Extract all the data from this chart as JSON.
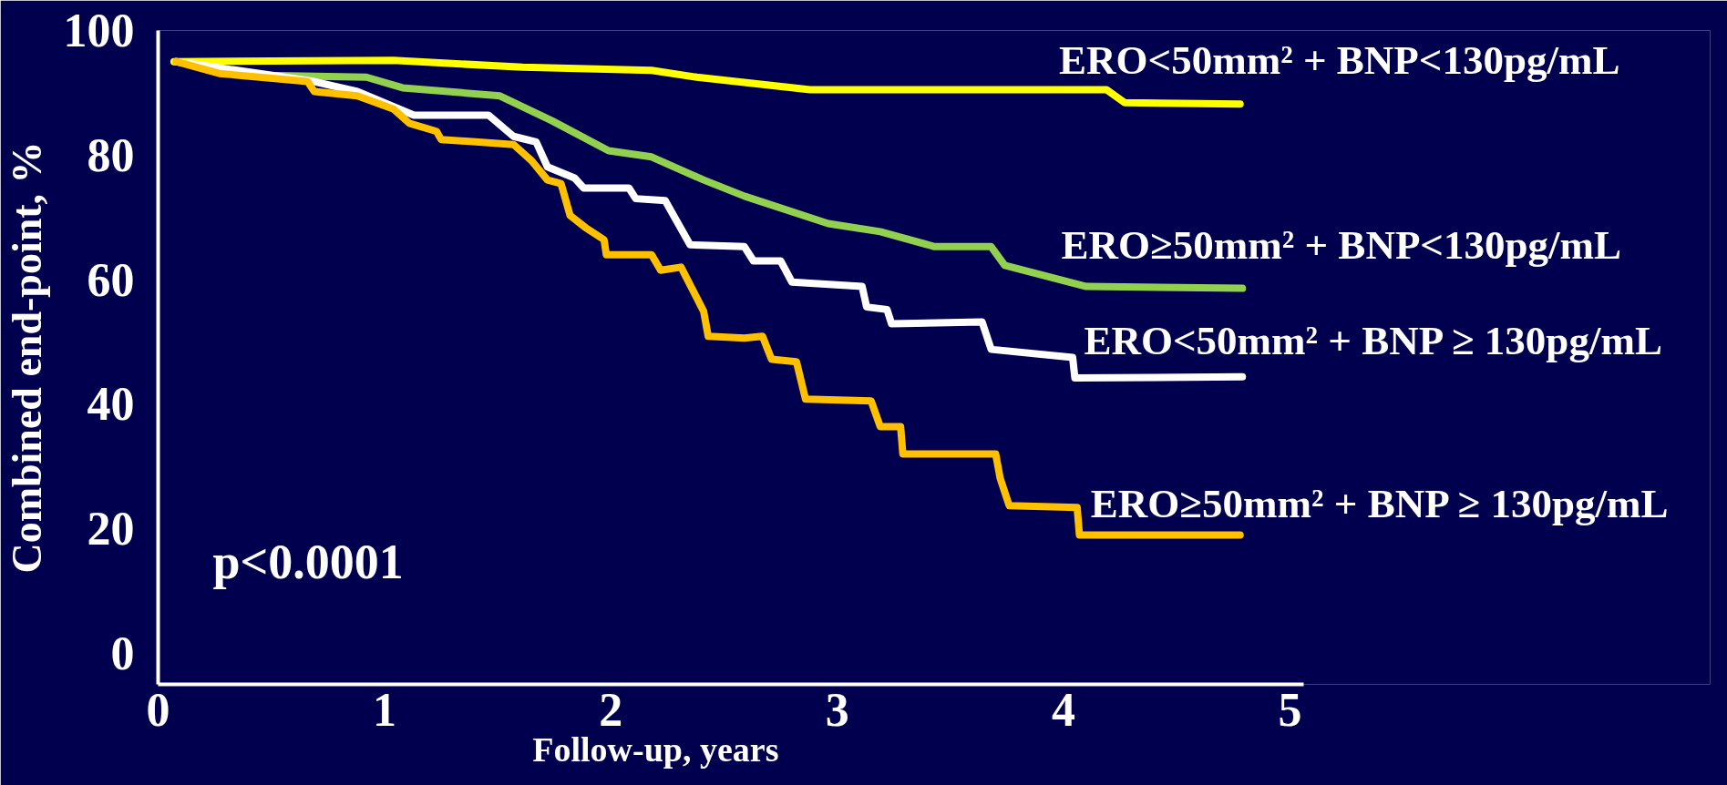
{
  "chart_data": {
    "type": "line",
    "xlabel": "Follow-up, years",
    "ylabel": "Combined end-point, %",
    "xlim": [
      0,
      5.06
    ],
    "ylim": [
      -5,
      100
    ],
    "xticks": [
      0,
      1,
      2,
      3,
      4,
      5
    ],
    "yticks": [
      0,
      20,
      40,
      60,
      80,
      100
    ],
    "grid": false,
    "marker": "none",
    "line_style": "solid",
    "annotations": [
      "p<0.0001"
    ],
    "series": [
      {
        "name": "ERO<50mm² + BNP<130pg/mL",
        "color": "#ffff00",
        "x": [
          0.07,
          1.04,
          1.61,
          2.18,
          2.38,
          2.88,
          4.19,
          4.27,
          4.78
        ],
        "values": [
          95,
          95.2,
          94.1,
          93.6,
          92.5,
          90.5,
          90.5,
          88.4,
          88.2
        ]
      },
      {
        "name": "ERO≥50mm² + BNP<130pg/mL",
        "color": "#92d050",
        "x": [
          0.08,
          0.47,
          0.92,
          1.08,
          1.51,
          1.74,
          1.99,
          2.18,
          2.41,
          2.59,
          2.96,
          3.19,
          3.43,
          3.68,
          3.74,
          4.1,
          4.79
        ],
        "values": [
          95,
          92.8,
          92.5,
          90.8,
          89.5,
          85.5,
          80.7,
          79.7,
          76,
          73.4,
          69,
          67.7,
          65.3,
          65.3,
          62.3,
          58.9,
          58.6
        ]
      },
      {
        "name": "ERO<50mm² + BNP ≥ 130pg/mL",
        "color": "#ffffff",
        "x": [
          0.08,
          0.56,
          0.69,
          0.88,
          1.13,
          1.46,
          1.57,
          1.67,
          1.72,
          1.84,
          1.88,
          2.08,
          2.11,
          2.24,
          2.35,
          2.59,
          2.63,
          2.75,
          2.8,
          3.11,
          3.13,
          3.22,
          3.24,
          3.64,
          3.68,
          4.04,
          4.05,
          4.79
        ],
        "values": [
          95,
          92.5,
          91.8,
          90.2,
          86.4,
          86.4,
          83,
          82.1,
          78.1,
          76.3,
          74.7,
          74.7,
          73,
          72.7,
          65.6,
          65.3,
          63,
          63,
          59.6,
          58.9,
          55.6,
          55.2,
          52.9,
          53.2,
          48.8,
          47.5,
          44.2,
          44.4
        ]
      },
      {
        "name": "ERO≥50mm² + BNP ≥ 130pg/mL",
        "color": "#ffc000",
        "x": [
          0.08,
          0.27,
          0.66,
          0.69,
          0.88,
          1.04,
          1.11,
          1.23,
          1.25,
          1.57,
          1.65,
          1.72,
          1.78,
          1.82,
          1.89,
          1.97,
          1.98,
          2.18,
          2.22,
          2.31,
          2.41,
          2.43,
          2.59,
          2.67,
          2.71,
          2.82,
          2.86,
          3.15,
          3.19,
          3.28,
          3.29,
          3.7,
          3.72,
          3.76,
          4.06,
          4.07,
          4.78
        ],
        "values": [
          95,
          93.1,
          91.8,
          90.2,
          89.5,
          87.4,
          85.1,
          83.8,
          82.5,
          81.7,
          79.1,
          76,
          75.4,
          70.3,
          68.3,
          66.4,
          64,
          64,
          61.5,
          62,
          54.9,
          50.9,
          50.6,
          50.9,
          47.2,
          46.8,
          40.8,
          40.5,
          36.4,
          36.4,
          32,
          32,
          28.1,
          23.7,
          23.4,
          19,
          19
        ]
      }
    ]
  }
}
